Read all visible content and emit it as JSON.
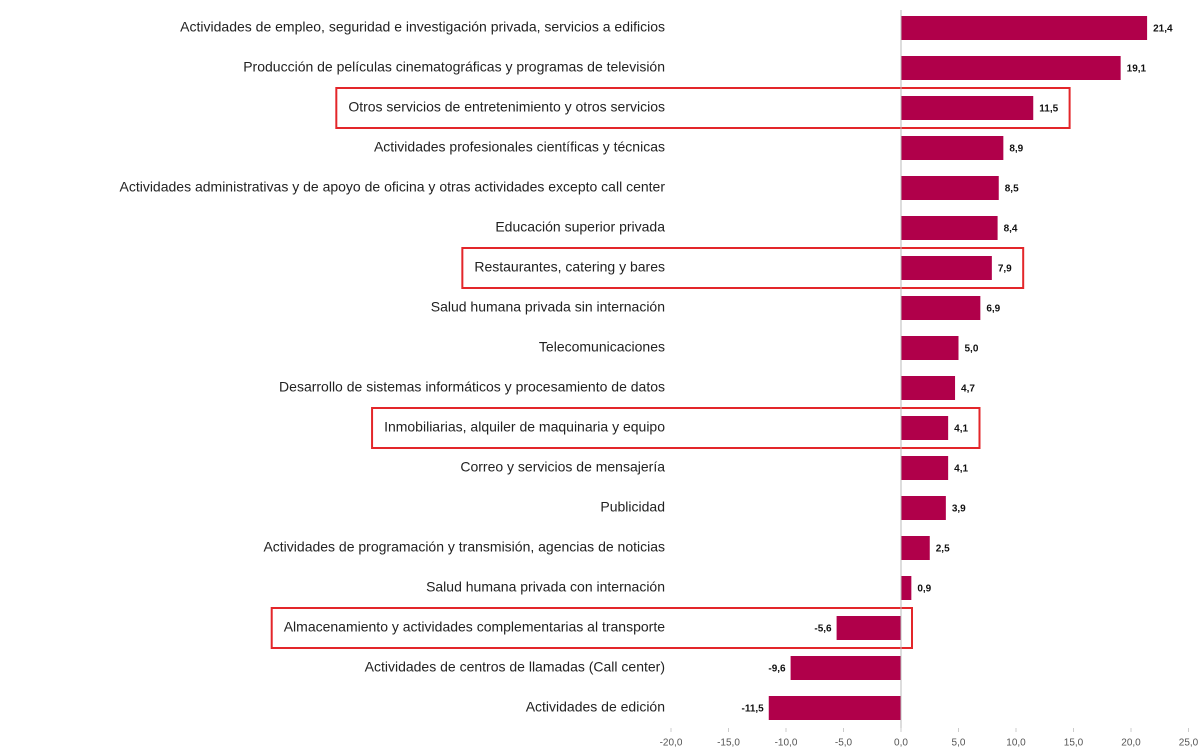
{
  "chart_data": {
    "type": "barh",
    "categories": [
      "Actividades de empleo, seguridad e investigación privada, servicios a edificios",
      "Producción de películas cinematográficas y programas de televisión",
      "Otros servicios de entretenimiento y otros servicios",
      "Actividades profesionales científicas y técnicas",
      "Actividades administrativas y de apoyo de oficina y otras actividades excepto call center",
      "Educación superior privada",
      "Restaurantes, catering y bares",
      "Salud humana privada sin internación",
      "Telecomunicaciones",
      "Desarrollo de sistemas informáticos y procesamiento de datos",
      "Inmobiliarias, alquiler de maquinaria y equipo",
      "Correo y servicios de mensajería",
      "Publicidad",
      "Actividades de programación y transmisión, agencias de noticias",
      "Salud humana privada con internación",
      "Almacenamiento y actividades complementarias al transporte",
      "Actividades de centros de llamadas (Call center)",
      "Actividades de edición"
    ],
    "values": [
      21.4,
      19.1,
      11.5,
      8.9,
      8.5,
      8.4,
      7.9,
      6.9,
      5.0,
      4.7,
      4.1,
      4.1,
      3.9,
      2.5,
      0.9,
      -5.6,
      -9.6,
      -11.5
    ],
    "value_labels": [
      "21,4",
      "19,1",
      "11,5",
      "8,9",
      "8,5",
      "8,4",
      "7,9",
      "6,9",
      "5,0",
      "4,7",
      "4,1",
      "4,1",
      "3,9",
      "2,5",
      "0,9",
      "-5,6",
      "-9,6",
      "-11,5"
    ],
    "color": "#b0004a",
    "xlim": [
      -20,
      25
    ],
    "xticks": [
      {
        "value": -20,
        "label": "-20,0"
      },
      {
        "value": -15,
        "label": "-15,0"
      },
      {
        "value": -10,
        "label": "-10,0"
      },
      {
        "value": -5,
        "label": "-5,0"
      },
      {
        "value": 0,
        "label": "0,0"
      },
      {
        "value": 5,
        "label": "5,0"
      },
      {
        "value": 10,
        "label": "10,0"
      },
      {
        "value": 15,
        "label": "15,0"
      },
      {
        "value": 20,
        "label": "20,0"
      },
      {
        "value": 25,
        "label": "25,0"
      }
    ]
  }
}
